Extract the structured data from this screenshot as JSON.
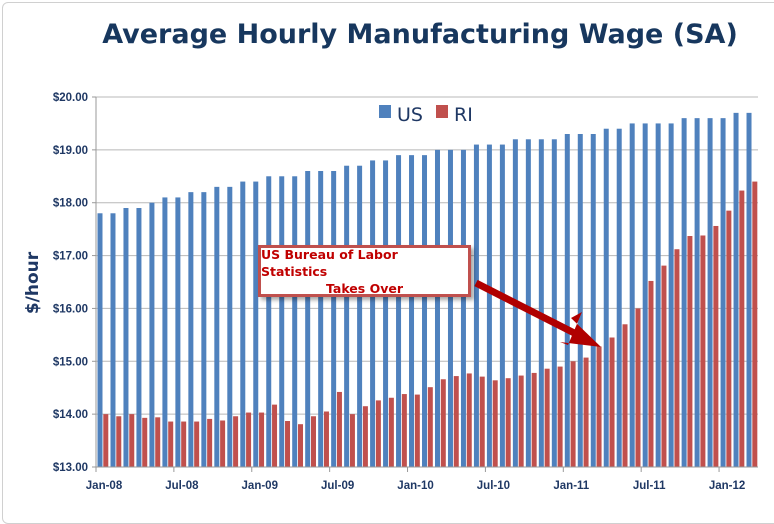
{
  "chart_data": {
    "type": "bar",
    "title": "Average Hourly Manufacturing Wage (SA)",
    "ylabel": "$/hour",
    "xlabel": "",
    "ylim": [
      13,
      20
    ],
    "yticks": [
      "$13.00",
      "$14.00",
      "$15.00",
      "$16.00",
      "$17.00",
      "$18.00",
      "$19.00",
      "$20.00"
    ],
    "xtick_labels": [
      "Jan-08",
      "Jul-08",
      "Jan-09",
      "Jul-09",
      "Jan-10",
      "Jul-10",
      "Jan-11",
      "Jul-11",
      "Jan-12"
    ],
    "grid": true,
    "legend_position": "top-center",
    "categories": [
      "Jan-08",
      "Feb-08",
      "Mar-08",
      "Apr-08",
      "May-08",
      "Jun-08",
      "Jul-08",
      "Aug-08",
      "Sep-08",
      "Oct-08",
      "Nov-08",
      "Dec-08",
      "Jan-09",
      "Feb-09",
      "Mar-09",
      "Apr-09",
      "May-09",
      "Jun-09",
      "Jul-09",
      "Aug-09",
      "Sep-09",
      "Oct-09",
      "Nov-09",
      "Dec-09",
      "Jan-10",
      "Feb-10",
      "Mar-10",
      "Apr-10",
      "May-10",
      "Jun-10",
      "Jul-10",
      "Aug-10",
      "Sep-10",
      "Oct-10",
      "Nov-10",
      "Dec-10",
      "Jan-11",
      "Feb-11",
      "Mar-11",
      "Apr-11",
      "May-11",
      "Jun-11",
      "Jul-11",
      "Aug-11",
      "Sep-11",
      "Oct-11",
      "Nov-11",
      "Dec-11",
      "Jan-12",
      "Feb-12",
      "Mar-12"
    ],
    "series": [
      {
        "name": "US",
        "color": "#4f81bd",
        "values": [
          17.8,
          17.8,
          17.9,
          17.9,
          18.0,
          18.1,
          18.1,
          18.2,
          18.2,
          18.3,
          18.3,
          18.4,
          18.4,
          18.5,
          18.5,
          18.5,
          18.6,
          18.6,
          18.6,
          18.7,
          18.7,
          18.8,
          18.8,
          18.9,
          18.9,
          18.9,
          19.0,
          19.0,
          19.0,
          19.1,
          19.1,
          19.1,
          19.2,
          19.2,
          19.2,
          19.2,
          19.3,
          19.3,
          19.3,
          19.4,
          19.4,
          19.5,
          19.5,
          19.5,
          19.5,
          19.6,
          19.6,
          19.6,
          19.6,
          19.7,
          19.7
        ]
      },
      {
        "name": "RI",
        "color": "#c0504d",
        "values": [
          14.0,
          13.96,
          14.0,
          13.93,
          13.94,
          13.86,
          13.86,
          13.86,
          13.91,
          13.88,
          13.96,
          14.03,
          14.03,
          14.18,
          13.87,
          13.81,
          13.96,
          14.05,
          14.42,
          14.0,
          14.15,
          14.26,
          14.31,
          14.38,
          14.37,
          14.51,
          14.66,
          14.72,
          14.77,
          14.71,
          14.64,
          14.68,
          14.73,
          14.78,
          14.86,
          14.9,
          15.0,
          15.07,
          15.28,
          15.45,
          15.7,
          16.0,
          16.52,
          16.81,
          17.12,
          17.37,
          17.38,
          17.56,
          17.85,
          18.23,
          18.4
        ]
      }
    ],
    "annotation": {
      "line1": "US Bureau of Labor Statistics",
      "line2": "Takes Over",
      "points_to": "Mar-11",
      "color": "#c00000"
    }
  }
}
